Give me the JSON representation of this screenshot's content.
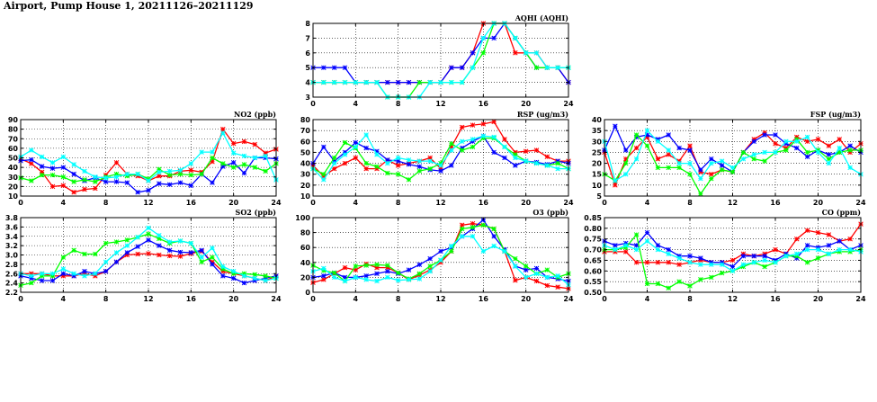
{
  "title": "Airport, Pump House 1, 20211126–20211129",
  "colors": {
    "s1": "#ff0000",
    "s2": "#0000ff",
    "s3": "#00ff00",
    "s4": "#00ffff",
    "axis": "#000000",
    "grid": "#000000"
  },
  "chart_data": [
    {
      "type": "line",
      "title": "AQHI (AQHI)",
      "ylim": [
        3,
        8
      ],
      "yticks": [
        3,
        4,
        5,
        6,
        7,
        8
      ],
      "xlim": [
        0,
        24
      ],
      "xticks": [
        0,
        4,
        8,
        12,
        16,
        20,
        24
      ],
      "x": [
        0,
        1,
        2,
        3,
        4,
        5,
        6,
        7,
        8,
        9,
        10,
        11,
        12,
        13,
        14,
        15,
        16,
        17,
        18,
        19,
        20,
        21,
        22,
        23,
        24
      ],
      "series": [
        {
          "color": "s1",
          "values": [
            4,
            4,
            4,
            4,
            4,
            4,
            4,
            4,
            4,
            4,
            4,
            4,
            4,
            5,
            5,
            6,
            8,
            8,
            8,
            6,
            6,
            6,
            5,
            5,
            4
          ]
        },
        {
          "color": "s2",
          "values": [
            5,
            5,
            5,
            5,
            4,
            4,
            4,
            4,
            4,
            4,
            4,
            4,
            4,
            5,
            5,
            6,
            7,
            7,
            8,
            7,
            6,
            5,
            5,
            5,
            4
          ]
        },
        {
          "color": "s3",
          "values": [
            4,
            4,
            4,
            4,
            4,
            4,
            4,
            3,
            3,
            3,
            4,
            4,
            4,
            4,
            4,
            5,
            6,
            8,
            8,
            7,
            6,
            5,
            5,
            5,
            5
          ]
        },
        {
          "color": "s4",
          "values": [
            4,
            4,
            4,
            4,
            4,
            4,
            4,
            3,
            3,
            3,
            3,
            4,
            4,
            4,
            4,
            5,
            7,
            8,
            8,
            7,
            6,
            6,
            5,
            5,
            5
          ]
        }
      ]
    },
    {
      "type": "line",
      "title": "NO2 (ppb)",
      "ylim": [
        10,
        90
      ],
      "yticks": [
        10,
        20,
        30,
        40,
        50,
        60,
        70,
        80,
        90
      ],
      "xlim": [
        0,
        24
      ],
      "xticks": [
        0,
        4,
        8,
        12,
        16,
        20,
        24
      ],
      "x": [
        0,
        1,
        2,
        3,
        4,
        5,
        6,
        7,
        8,
        9,
        10,
        11,
        12,
        13,
        14,
        15,
        16,
        17,
        18,
        19,
        20,
        21,
        22,
        23,
        24
      ],
      "series": [
        {
          "color": "s1",
          "values": [
            49,
            44,
            35,
            20,
            21,
            14,
            17,
            18,
            32,
            45,
            33,
            31,
            26,
            31,
            31,
            36,
            37,
            35,
            46,
            80,
            65,
            67,
            64,
            55,
            59
          ]
        },
        {
          "color": "s2",
          "values": [
            47,
            48,
            41,
            39,
            40,
            33,
            26,
            29,
            25,
            25,
            24,
            14,
            16,
            23,
            22,
            24,
            21,
            33,
            24,
            41,
            45,
            34,
            50,
            50,
            49
          ]
        },
        {
          "color": "s3",
          "values": [
            29,
            26,
            32,
            32,
            30,
            25,
            27,
            25,
            30,
            33,
            31,
            33,
            28,
            38,
            32,
            33,
            32,
            33,
            50,
            44,
            40,
            43,
            40,
            36,
            44
          ]
        },
        {
          "color": "s4",
          "values": [
            51,
            58,
            51,
            45,
            51,
            43,
            36,
            30,
            29,
            30,
            33,
            33,
            26,
            35,
            36,
            37,
            44,
            56,
            56,
            76,
            55,
            52,
            50,
            52,
            27
          ]
        }
      ]
    },
    {
      "type": "line",
      "title": "RSP (ug/m3)",
      "ylim": [
        10,
        80
      ],
      "yticks": [
        10,
        20,
        30,
        40,
        50,
        60,
        70,
        80
      ],
      "xlim": [
        0,
        24
      ],
      "xticks": [
        0,
        4,
        8,
        12,
        16,
        20,
        24
      ],
      "x": [
        0,
        1,
        2,
        3,
        4,
        5,
        6,
        7,
        8,
        9,
        10,
        11,
        12,
        13,
        14,
        15,
        16,
        17,
        18,
        19,
        20,
        21,
        22,
        23,
        24
      ],
      "series": [
        {
          "color": "s1",
          "values": [
            38,
            28,
            35,
            40,
            45,
            35,
            35,
            43,
            38,
            40,
            42,
            45,
            35,
            55,
            73,
            75,
            76,
            78,
            62,
            50,
            51,
            52,
            46,
            42,
            42
          ]
        },
        {
          "color": "s2",
          "values": [
            40,
            55,
            42,
            50,
            59,
            54,
            51,
            43,
            42,
            39,
            37,
            34,
            33,
            38,
            54,
            60,
            65,
            50,
            45,
            38,
            42,
            41,
            39,
            42,
            40
          ]
        },
        {
          "color": "s3",
          "values": [
            35,
            30,
            45,
            59,
            54,
            40,
            37,
            31,
            30,
            25,
            33,
            35,
            40,
            58,
            52,
            55,
            63,
            63,
            55,
            48,
            42,
            40,
            38,
            40,
            35
          ]
        },
        {
          "color": "s4",
          "values": [
            35,
            25,
            40,
            48,
            55,
            66,
            48,
            40,
            45,
            43,
            42,
            42,
            38,
            52,
            60,
            62,
            65,
            64,
            55,
            45,
            42,
            40,
            38,
            35,
            35
          ]
        }
      ]
    },
    {
      "type": "line",
      "title": "FSP (ug/m3)",
      "ylim": [
        5,
        40
      ],
      "yticks": [
        5,
        10,
        15,
        20,
        25,
        30,
        35,
        40
      ],
      "xlim": [
        0,
        24
      ],
      "xticks": [
        0,
        4,
        8,
        12,
        16,
        20,
        24
      ],
      "x": [
        0,
        1,
        2,
        3,
        4,
        5,
        6,
        7,
        8,
        9,
        10,
        11,
        12,
        13,
        14,
        15,
        16,
        17,
        18,
        19,
        20,
        21,
        22,
        23,
        24
      ],
      "series": [
        {
          "color": "s1",
          "values": [
            25,
            10,
            22,
            27,
            32,
            22,
            24,
            21,
            28,
            16,
            15,
            17,
            16,
            25,
            31,
            34,
            29,
            27,
            32,
            30,
            31,
            28,
            31,
            25,
            29
          ]
        },
        {
          "color": "s2",
          "values": [
            26,
            37,
            26,
            32,
            33,
            31,
            33,
            27,
            26,
            17,
            22,
            19,
            16,
            25,
            30,
            33,
            33,
            29,
            27,
            23,
            26,
            24,
            25,
            28,
            25
          ]
        },
        {
          "color": "s3",
          "values": [
            15,
            12,
            20,
            33,
            28,
            18,
            18,
            18,
            15,
            6,
            13,
            17,
            16,
            25,
            22,
            21,
            25,
            26,
            31,
            25,
            26,
            22,
            25,
            26,
            26
          ]
        },
        {
          "color": "s4",
          "values": [
            30,
            12,
            15,
            22,
            35,
            30,
            26,
            20,
            20,
            13,
            20,
            21,
            18,
            22,
            24,
            25,
            25,
            30,
            30,
            32,
            25,
            20,
            27,
            18,
            15
          ]
        }
      ]
    },
    {
      "type": "line",
      "title": "SO2 (ppb)",
      "ylim": [
        2.2,
        3.8
      ],
      "yticks": [
        2.2,
        2.4,
        2.6,
        2.8,
        3.0,
        3.2,
        3.4,
        3.6,
        3.8
      ],
      "xlim": [
        0,
        24
      ],
      "xticks": [
        0,
        4,
        8,
        12,
        16,
        20,
        24
      ],
      "x": [
        0,
        1,
        2,
        3,
        4,
        5,
        6,
        7,
        8,
        9,
        10,
        11,
        12,
        13,
        14,
        15,
        16,
        17,
        18,
        19,
        20,
        21,
        22,
        23,
        24
      ],
      "series": [
        {
          "color": "s1",
          "values": [
            2.6,
            2.6,
            2.6,
            2.55,
            2.55,
            2.55,
            2.6,
            2.55,
            2.65,
            2.85,
            3.0,
            3.02,
            3.03,
            3.0,
            2.98,
            2.97,
            3.03,
            3.08,
            2.85,
            2.65,
            2.6,
            2.55,
            2.5,
            2.45,
            2.55
          ]
        },
        {
          "color": "s2",
          "values": [
            2.55,
            2.5,
            2.45,
            2.45,
            2.6,
            2.55,
            2.65,
            2.6,
            2.65,
            2.85,
            3.05,
            3.18,
            3.32,
            3.2,
            3.1,
            3.06,
            3.05,
            3.1,
            2.8,
            2.55,
            2.5,
            2.4,
            2.45,
            2.5,
            2.55
          ]
        },
        {
          "color": "s3",
          "values": [
            2.35,
            2.4,
            2.55,
            2.55,
            2.95,
            3.1,
            3.02,
            3.02,
            3.25,
            3.28,
            3.32,
            3.38,
            3.45,
            3.35,
            3.25,
            3.3,
            3.25,
            2.85,
            2.95,
            2.7,
            2.6,
            2.6,
            2.58,
            2.55,
            2.5
          ]
        },
        {
          "color": "s4",
          "values": [
            2.6,
            2.55,
            2.6,
            2.6,
            2.7,
            2.6,
            2.55,
            2.6,
            2.85,
            3.05,
            3.2,
            3.38,
            3.58,
            3.42,
            3.28,
            3.3,
            3.25,
            2.95,
            3.15,
            2.75,
            2.65,
            2.55,
            2.5,
            2.45,
            2.5
          ]
        }
      ]
    },
    {
      "type": "line",
      "title": "O3 (ppb)",
      "ylim": [
        0,
        100
      ],
      "yticks": [
        0,
        20,
        40,
        60,
        80,
        100
      ],
      "xlim": [
        0,
        24
      ],
      "xticks": [
        0,
        4,
        8,
        12,
        16,
        20,
        24
      ],
      "x": [
        0,
        1,
        2,
        3,
        4,
        5,
        6,
        7,
        8,
        9,
        10,
        11,
        12,
        13,
        14,
        15,
        16,
        17,
        18,
        19,
        20,
        21,
        22,
        23,
        24
      ],
      "series": [
        {
          "color": "s1",
          "values": [
            13,
            17,
            25,
            33,
            30,
            38,
            33,
            33,
            26,
            17,
            23,
            30,
            40,
            55,
            90,
            92,
            90,
            85,
            55,
            16,
            20,
            15,
            9,
            7,
            5
          ]
        },
        {
          "color": "s2",
          "values": [
            20,
            22,
            26,
            20,
            20,
            22,
            25,
            28,
            25,
            30,
            37,
            45,
            55,
            60,
            75,
            85,
            97,
            75,
            57,
            35,
            30,
            32,
            20,
            18,
            15
          ]
        },
        {
          "color": "s3",
          "values": [
            36,
            29,
            26,
            15,
            35,
            36,
            37,
            36,
            26,
            18,
            25,
            35,
            43,
            55,
            85,
            87,
            90,
            85,
            55,
            45,
            35,
            25,
            30,
            20,
            25
          ]
        },
        {
          "color": "s4",
          "values": [
            28,
            32,
            20,
            15,
            20,
            17,
            15,
            20,
            16,
            17,
            18,
            28,
            43,
            62,
            75,
            75,
            55,
            62,
            55,
            35,
            20,
            25,
            20,
            22,
            10
          ]
        }
      ]
    },
    {
      "type": "line",
      "title": "CO (ppm)",
      "ylim": [
        0.5,
        0.85
      ],
      "yticks": [
        0.5,
        0.55,
        0.6,
        0.65,
        0.7,
        0.75,
        0.8,
        0.85
      ],
      "xlim": [
        0,
        24
      ],
      "xticks": [
        0,
        4,
        8,
        12,
        16,
        20,
        24
      ],
      "x": [
        0,
        1,
        2,
        3,
        4,
        5,
        6,
        7,
        8,
        9,
        10,
        11,
        12,
        13,
        14,
        15,
        16,
        17,
        18,
        19,
        20,
        21,
        22,
        23,
        24
      ],
      "series": [
        {
          "color": "s1",
          "values": [
            0.69,
            0.69,
            0.69,
            0.64,
            0.64,
            0.64,
            0.64,
            0.63,
            0.64,
            0.65,
            0.64,
            0.64,
            0.65,
            0.68,
            0.67,
            0.68,
            0.7,
            0.68,
            0.75,
            0.79,
            0.78,
            0.77,
            0.74,
            0.75,
            0.82
          ]
        },
        {
          "color": "s2",
          "values": [
            0.74,
            0.72,
            0.73,
            0.72,
            0.78,
            0.72,
            0.7,
            0.67,
            0.67,
            0.66,
            0.64,
            0.64,
            0.62,
            0.67,
            0.67,
            0.67,
            0.65,
            0.68,
            0.66,
            0.72,
            0.71,
            0.72,
            0.74,
            0.7,
            0.72
          ]
        },
        {
          "color": "s3",
          "values": [
            0.7,
            0.7,
            0.71,
            0.77,
            0.54,
            0.54,
            0.52,
            0.55,
            0.53,
            0.56,
            0.57,
            0.59,
            0.6,
            0.62,
            0.64,
            0.62,
            0.64,
            0.67,
            0.67,
            0.64,
            0.66,
            0.68,
            0.69,
            0.69,
            0.7
          ]
        },
        {
          "color": "s4",
          "values": [
            0.72,
            0.7,
            0.72,
            0.7,
            0.74,
            0.7,
            0.68,
            0.66,
            0.64,
            0.63,
            0.63,
            0.63,
            0.6,
            0.63,
            0.64,
            0.65,
            0.64,
            0.67,
            0.68,
            0.7,
            0.7,
            0.68,
            0.7,
            0.7,
            0.69
          ]
        }
      ]
    }
  ]
}
